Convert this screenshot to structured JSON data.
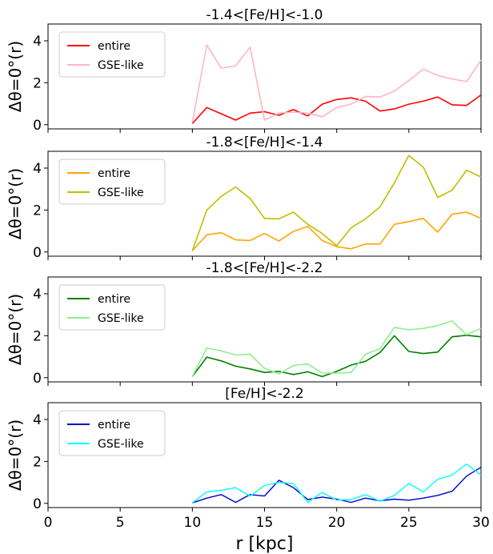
{
  "chart_data": [
    {
      "type": "line",
      "title": "-1.4<[Fe/H]<-1.0",
      "ylabel": "Δθ=0°(r)",
      "xlim": [
        0,
        30
      ],
      "ylim": [
        -0.2,
        4.8
      ],
      "yticks": [
        0,
        2,
        4
      ],
      "legend_position": "upper-left",
      "series": [
        {
          "name": "entire",
          "color": "#ff0000",
          "width": 1.6,
          "x": [
            10,
            11,
            12,
            13,
            14,
            15,
            16,
            17,
            18,
            19,
            20,
            21,
            22,
            23,
            24,
            25,
            26,
            27,
            28,
            29,
            30
          ],
          "y": [
            0.05,
            0.82,
            0.52,
            0.22,
            0.55,
            0.62,
            0.45,
            0.72,
            0.42,
            0.98,
            1.2,
            1.28,
            1.12,
            0.65,
            0.75,
            0.98,
            1.12,
            1.32,
            0.95,
            0.92,
            1.42
          ]
        },
        {
          "name": "GSE-like",
          "color": "#ffb6c1",
          "width": 1.6,
          "x": [
            10,
            11,
            12,
            13,
            14,
            15,
            16,
            17,
            18,
            19,
            20,
            21,
            22,
            23,
            24,
            25,
            26,
            27,
            28,
            29,
            30
          ],
          "y": [
            0.1,
            3.8,
            2.7,
            2.8,
            3.7,
            0.22,
            0.55,
            0.6,
            0.55,
            0.38,
            0.82,
            0.98,
            1.35,
            1.32,
            1.6,
            2.1,
            2.65,
            2.35,
            2.18,
            2.05,
            3.08
          ]
        }
      ]
    },
    {
      "type": "line",
      "title": "-1.8<[Fe/H]<-1.4",
      "ylabel": "Δθ=0°(r)",
      "xlim": [
        0,
        30
      ],
      "ylim": [
        -0.2,
        4.8
      ],
      "yticks": [
        0,
        2,
        4
      ],
      "legend_position": "upper-left",
      "series": [
        {
          "name": "entire",
          "color": "#ffa500",
          "width": 1.6,
          "x": [
            10,
            11,
            12,
            13,
            14,
            15,
            16,
            17,
            18,
            19,
            20,
            21,
            22,
            23,
            24,
            25,
            26,
            27,
            28,
            29,
            30
          ],
          "y": [
            0.05,
            0.82,
            0.92,
            0.58,
            0.55,
            0.88,
            0.52,
            0.98,
            1.22,
            0.55,
            0.25,
            0.15,
            0.38,
            0.38,
            1.32,
            1.45,
            1.6,
            0.95,
            1.8,
            1.9,
            1.6
          ]
        },
        {
          "name": "GSE-like",
          "color": "#bfbf00",
          "width": 1.6,
          "x": [
            10,
            11,
            12,
            13,
            14,
            15,
            16,
            17,
            18,
            19,
            20,
            21,
            22,
            23,
            24,
            25,
            26,
            27,
            28,
            29,
            30
          ],
          "y": [
            0.05,
            2.0,
            2.65,
            3.1,
            2.55,
            1.6,
            1.58,
            1.9,
            1.32,
            0.88,
            0.3,
            1.15,
            1.58,
            2.15,
            3.3,
            4.6,
            4.05,
            2.6,
            2.95,
            3.9,
            3.58
          ]
        }
      ]
    },
    {
      "type": "line",
      "title": "-1.8<[Fe/H]<-2.2",
      "ylabel": "Δθ=0°(r)",
      "xlim": [
        0,
        30
      ],
      "ylim": [
        -0.2,
        4.8
      ],
      "yticks": [
        0,
        2,
        4
      ],
      "legend_position": "upper-left",
      "series": [
        {
          "name": "entire",
          "color": "#008000",
          "width": 1.6,
          "x": [
            10,
            11,
            12,
            13,
            14,
            15,
            16,
            17,
            18,
            19,
            20,
            21,
            22,
            23,
            24,
            25,
            26,
            27,
            28,
            29,
            30
          ],
          "y": [
            0.05,
            0.98,
            0.8,
            0.55,
            0.42,
            0.25,
            0.3,
            0.15,
            0.28,
            0.05,
            0.3,
            0.6,
            0.78,
            1.2,
            2.0,
            1.25,
            1.15,
            1.22,
            1.95,
            2.02,
            1.95
          ]
        },
        {
          "name": "GSE-like",
          "color": "#90ee90",
          "width": 1.6,
          "x": [
            10,
            11,
            12,
            13,
            14,
            15,
            16,
            17,
            18,
            19,
            20,
            21,
            22,
            23,
            24,
            25,
            26,
            27,
            28,
            29,
            30
          ],
          "y": [
            0.05,
            1.42,
            1.28,
            1.08,
            1.12,
            0.45,
            0.18,
            0.58,
            0.65,
            0.22,
            0.22,
            0.25,
            1.12,
            1.38,
            2.4,
            2.28,
            2.35,
            2.48,
            2.7,
            2.05,
            2.35
          ]
        }
      ]
    },
    {
      "type": "line",
      "title": "[Fe/H]<-2.2",
      "ylabel": "Δθ=0°(r)",
      "xlabel": "r [kpc]",
      "xlim": [
        0,
        30
      ],
      "ylim": [
        -0.2,
        4.8
      ],
      "xticks": [
        0,
        5,
        10,
        15,
        20,
        25,
        30
      ],
      "yticks": [
        0,
        2,
        4
      ],
      "legend_position": "upper-left",
      "series": [
        {
          "name": "entire",
          "color": "#0000cc",
          "width": 1.4,
          "x": [
            10,
            11,
            12,
            13,
            14,
            15,
            16,
            17,
            18,
            19,
            20,
            21,
            22,
            23,
            24,
            25,
            26,
            27,
            28,
            29,
            30
          ],
          "y": [
            0.02,
            0.25,
            0.42,
            0.05,
            0.42,
            0.35,
            1.1,
            0.75,
            0.18,
            0.3,
            0.2,
            0.05,
            0.25,
            0.12,
            0.2,
            0.15,
            0.25,
            0.38,
            0.58,
            1.3,
            1.72
          ]
        },
        {
          "name": "GSE-like",
          "color": "#00ffff",
          "width": 1.4,
          "x": [
            10,
            11,
            12,
            13,
            14,
            15,
            16,
            17,
            18,
            19,
            20,
            21,
            22,
            23,
            24,
            25,
            26,
            27,
            28,
            29,
            30
          ],
          "y": [
            0.02,
            0.55,
            0.62,
            0.75,
            0.35,
            0.85,
            1.0,
            0.95,
            0.05,
            0.52,
            0.15,
            0.18,
            0.42,
            0.1,
            0.38,
            0.95,
            0.55,
            1.15,
            1.35,
            1.88,
            1.35
          ]
        }
      ]
    }
  ]
}
